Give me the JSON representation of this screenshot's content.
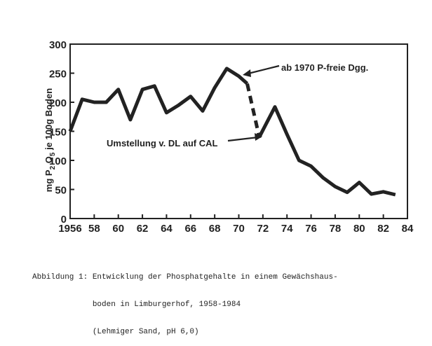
{
  "chart_data": {
    "type": "line",
    "ylabel": "mg P2O5 je 100g Boden",
    "ylabel_parts": {
      "pre": "mg P",
      "sub1": "2",
      "mid": " O",
      "sub2": "5",
      "post": " je 100g Boden"
    },
    "xlabel": "",
    "xlim": [
      1956,
      1984
    ],
    "ylim": [
      0,
      300
    ],
    "grid": false,
    "x_ticks": [
      1956,
      1958,
      1960,
      1962,
      1964,
      1966,
      1968,
      1970,
      1972,
      1974,
      1976,
      1978,
      1980,
      1982,
      1984
    ],
    "x_tick_labels": [
      "1956",
      "58",
      "60",
      "62",
      "64",
      "66",
      "68",
      "70",
      "72",
      "74",
      "76",
      "78",
      "80",
      "82",
      "84"
    ],
    "y_ticks": [
      0,
      50,
      100,
      150,
      200,
      250,
      300
    ],
    "y_tick_labels": [
      "0",
      "50",
      "100",
      "150",
      "200",
      "250",
      "300"
    ],
    "series": [
      {
        "segment": "solid",
        "x": [
          1956,
          1957,
          1958,
          1959,
          1960,
          1961,
          1962,
          1963,
          1964,
          1965,
          1966,
          1967,
          1968,
          1969,
          1970,
          1970.7
        ],
        "values": [
          150,
          205,
          200,
          200,
          222,
          170,
          222,
          228,
          182,
          195,
          210,
          185,
          225,
          258,
          245,
          232
        ]
      },
      {
        "segment": "dashed",
        "x": [
          1970.7,
          1971.7
        ],
        "values": [
          232,
          140
        ]
      },
      {
        "segment": "solid",
        "x": [
          1971.7,
          1973,
          1974,
          1975,
          1976,
          1977,
          1978,
          1979,
          1980,
          1981,
          1982,
          1983
        ],
        "values": [
          140,
          192,
          145,
          100,
          90,
          70,
          55,
          45,
          62,
          42,
          46,
          41
        ]
      }
    ],
    "annotations": [
      {
        "text": "ab 1970 P-freie Dgg."
      },
      {
        "text": "Umstellung v. DL auf CAL"
      }
    ]
  },
  "caption": {
    "line1": "Abbildung 1: Entwicklung der Phosphatgehalte in einem Gewächshaus-",
    "line2": "             boden in Limburgerhof, 1958-1984",
    "line3": "             (Lehmiger Sand, pH 6,0)"
  }
}
